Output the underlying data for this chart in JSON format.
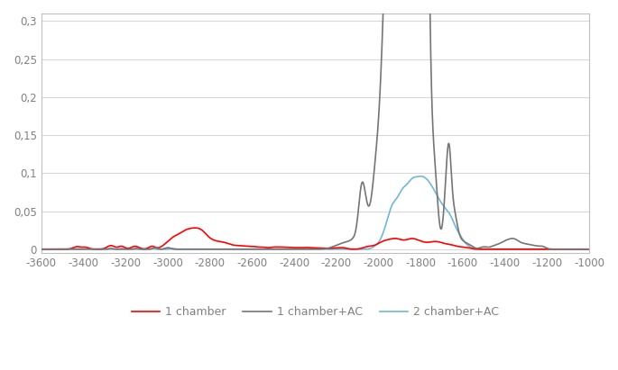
{
  "title": "",
  "xlabel": "",
  "ylabel": "",
  "xlim": [
    -3600,
    -1000
  ],
  "ylim": [
    -0.005,
    0.31
  ],
  "yticks": [
    0,
    0.05,
    0.1,
    0.15,
    0.2,
    0.25,
    0.3
  ],
  "xticks": [
    -3600,
    -3400,
    -3200,
    -3000,
    -2800,
    -2600,
    -2400,
    -2200,
    -2000,
    -1800,
    -1600,
    -1400,
    -1200,
    -1000
  ],
  "series": {
    "1chamber": {
      "color": "#FF0000",
      "label": "1 chamber",
      "linewidth": 1.2
    },
    "1chamberAC": {
      "color": "#757575",
      "label": "1 chamber+AC",
      "linewidth": 1.2
    },
    "2chamberAC": {
      "color": "#70B8D8",
      "label": "2 chamber+AC",
      "linewidth": 1.2
    }
  },
  "grid": true,
  "grid_color": "#D8D8D8",
  "background_color": "#FFFFFF",
  "legend_fontsize": 9,
  "tick_fontsize": 8.5,
  "tick_color": "#808080"
}
